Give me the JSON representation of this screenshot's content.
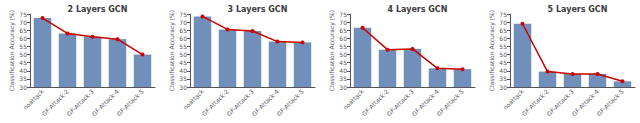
{
  "chart_data": [
    {
      "type": "bar",
      "title": "2 Layers GCN",
      "ylabel": "Classification Accuracy (%)",
      "categories": [
        "noattack",
        "GF-Attack-2",
        "GF-Attack-3",
        "GF-Attack-4",
        "GF-Attack-5"
      ],
      "series": [
        {
          "type": "bar",
          "color": "#7090bb",
          "values": [
            72.5,
            63.0,
            61.0,
            59.5,
            50.0
          ]
        },
        {
          "type": "line",
          "color": "#cc0000",
          "marker": "circle",
          "values": [
            72.5,
            63.0,
            61.0,
            59.5,
            50.0
          ]
        }
      ],
      "ylim": [
        30,
        75
      ],
      "yticks": [
        30,
        35,
        40,
        45,
        50,
        55,
        60,
        65,
        70,
        75
      ],
      "grid": false
    },
    {
      "type": "bar",
      "title": "3 Layers GCN",
      "ylabel": "Classification Accuracy (%)",
      "categories": [
        "noattack",
        "GF-Attack-2",
        "GF-Attack-3",
        "GF-Attack-4",
        "GF-Attack-5"
      ],
      "series": [
        {
          "type": "bar",
          "color": "#7090bb",
          "values": [
            73.5,
            65.5,
            64.5,
            58.0,
            57.5
          ]
        },
        {
          "type": "line",
          "color": "#cc0000",
          "marker": "circle",
          "values": [
            73.5,
            65.5,
            64.5,
            58.0,
            57.5
          ]
        }
      ],
      "ylim": [
        30,
        75
      ],
      "yticks": [
        30,
        35,
        40,
        45,
        50,
        55,
        60,
        65,
        70,
        75
      ],
      "grid": false
    },
    {
      "type": "bar",
      "title": "4 Layers GCN",
      "ylabel": "Classification Accuracy (%)",
      "categories": [
        "noattack",
        "GF-Attack-2",
        "GF-Attack-3",
        "GF-Attack-4",
        "GF-Attack-5"
      ],
      "series": [
        {
          "type": "bar",
          "color": "#7090bb",
          "values": [
            66.5,
            53.0,
            53.5,
            41.5,
            41.0
          ]
        },
        {
          "type": "line",
          "color": "#cc0000",
          "marker": "circle",
          "values": [
            66.5,
            53.0,
            53.5,
            41.5,
            41.0
          ]
        }
      ],
      "ylim": [
        30,
        75
      ],
      "yticks": [
        30,
        35,
        40,
        45,
        50,
        55,
        60,
        65,
        70,
        75
      ],
      "grid": false
    },
    {
      "type": "bar",
      "title": "5 Layers GCN",
      "ylabel": "Classification Accuracy (%)",
      "categories": [
        "noattack",
        "GF-Attack-2",
        "GF-Attack-3",
        "GF-Attack-4",
        "GF-Attack-5"
      ],
      "series": [
        {
          "type": "bar",
          "color": "#7090bb",
          "values": [
            69.0,
            39.5,
            38.0,
            38.0,
            33.5
          ]
        },
        {
          "type": "line",
          "color": "#cc0000",
          "marker": "circle",
          "values": [
            69.0,
            39.5,
            38.0,
            38.0,
            33.5
          ]
        }
      ],
      "ylim": [
        30,
        75
      ],
      "yticks": [
        30,
        35,
        40,
        45,
        50,
        55,
        60,
        65,
        70,
        75
      ],
      "grid": false
    }
  ]
}
